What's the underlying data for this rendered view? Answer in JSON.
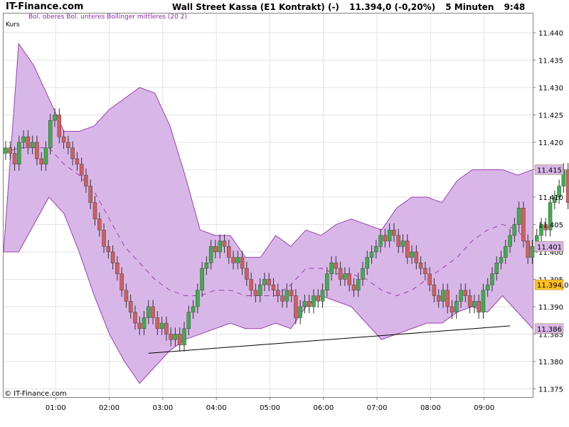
{
  "header": {
    "brand": "IT-Finance.com",
    "instrument": "Wall Street Kassa (E1 Kontrakt) (-)",
    "quote": "11.394,0 (-0,20%)",
    "interval": "5 Minuten",
    "time": "9:48"
  },
  "colors": {
    "band_fill": "#d9b6e8",
    "band_line": "#9a40b0",
    "up_candle": "#3cb04a",
    "down_candle": "#d06060",
    "last_price_box": "#ffc020",
    "band_price_box": "#d9b6e8"
  },
  "chart_data": {
    "type": "candlestick",
    "legend": {
      "price_label": "Kurs",
      "band_label": "Bol. oberes Bol. unteres Bollinger mittleres (20 2)"
    },
    "copyright": "© IT-Finance.com",
    "xlabels": [
      "01:00",
      "02:00",
      "03:00",
      "04:00",
      "05:00",
      "06:00",
      "07:00",
      "08:00",
      "09:00"
    ],
    "x_start": "00:04",
    "x_interval_minutes": 5,
    "yticks": [
      "11.440",
      "11.435",
      "11.430",
      "11.425",
      "11.420",
      "11.415",
      "11.410",
      "11.405",
      "11.400",
      "11.395",
      "11.390",
      "11.385",
      "11.380",
      "11.375"
    ],
    "ylim": [
      11373.5,
      11443.5
    ],
    "grid": true,
    "close": [
      11419,
      11418,
      11416,
      11420,
      11421,
      11419,
      11420,
      11417,
      11416,
      11419,
      11424,
      11425,
      11421,
      11420,
      11419,
      11417,
      11416,
      11414,
      11412,
      11409,
      11406,
      11404,
      11401,
      11400,
      11398,
      11396,
      11393,
      11391,
      11389,
      11387,
      11386,
      11388,
      11390,
      11388,
      11386,
      11387,
      11385,
      11384,
      11385,
      11383,
      11386,
      11389,
      11390,
      11393,
      11397,
      11398,
      11401,
      11400,
      11402,
      11401,
      11399,
      11398,
      11399,
      11397,
      11395,
      11393,
      11392,
      11394,
      11395,
      11394,
      11393,
      11392,
      11391,
      11393,
      11392,
      11388,
      11390,
      11391,
      11390,
      11392,
      11391,
      11393,
      11396,
      11398,
      11397,
      11395,
      11396,
      11394,
      11393,
      11395,
      11397,
      11399,
      11400,
      11401,
      11403,
      11402,
      11404,
      11403,
      11401,
      11402,
      11399,
      11400,
      11398,
      11397,
      11396,
      11394,
      11392,
      11391,
      11393,
      11390,
      11389,
      11391,
      11393,
      11392,
      11390,
      11391,
      11389,
      11393,
      11394,
      11396,
      11398,
      11399,
      11401,
      11403,
      11405,
      11408,
      11402,
      11399,
      11401,
      11403,
      11405,
      11404,
      11409,
      11410,
      11412,
      11415,
      11409,
      11406,
      11404,
      11402,
      11398,
      11394,
      11391,
      11390,
      11392,
      11391,
      11393,
      11394
    ],
    "bollinger": {
      "period": 20,
      "std_dev": 2,
      "upper": [
        11400,
        11438,
        11434,
        11428,
        11422,
        11422,
        11423,
        11426,
        11428,
        11430,
        11429,
        11423,
        11414,
        11404,
        11403,
        11403,
        11399,
        11399,
        11403,
        11401,
        11404,
        11403,
        11405,
        11406,
        11405,
        11404,
        11408,
        11410,
        11410,
        11409,
        11413,
        11415,
        11415,
        11415,
        11414,
        11415
      ],
      "middle": [
        11418,
        11419,
        11419,
        11419,
        11416,
        11414,
        11411,
        11406,
        11401,
        11398,
        11395,
        11393,
        11392,
        11392,
        11393,
        11393,
        11392,
        11392,
        11392,
        11394,
        11397,
        11397,
        11396,
        11396,
        11395,
        11393,
        11392,
        11393,
        11395,
        11397,
        11399,
        11402,
        11404,
        11405,
        11404,
        11400
      ],
      "lower": [
        11400,
        11400,
        11405,
        11410,
        11407,
        11400,
        11392,
        11385,
        11380,
        11376,
        11379,
        11382,
        11384,
        11385,
        11386,
        11387,
        11386,
        11386,
        11387,
        11386,
        11390,
        11392,
        11391,
        11390,
        11387,
        11384,
        11385,
        11386,
        11387,
        11387,
        11389,
        11390,
        11389,
        11392,
        11389,
        11386
      ]
    },
    "trendline": {
      "from": {
        "x": "02:44",
        "y": 11381.5
      },
      "to": {
        "x": "09:29",
        "y": 11386.5
      }
    },
    "price_markers": {
      "last": "11.394,0",
      "upper": "11.415",
      "middle": "11.401",
      "lower": "11.386"
    }
  }
}
